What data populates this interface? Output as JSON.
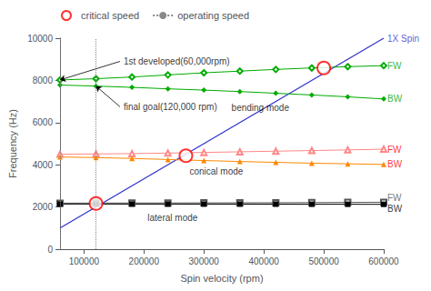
{
  "chart_data": {
    "type": "line",
    "xlabel": "Spin velocity (rpm)",
    "ylabel": "Frequency (Hz)",
    "xlim": [
      60000,
      600000
    ],
    "ylim": [
      0,
      10000
    ],
    "xticks": [
      100000,
      200000,
      300000,
      400000,
      500000,
      600000
    ],
    "yticks": [
      0,
      2000,
      4000,
      6000,
      8000,
      10000
    ],
    "grid": false,
    "legend": "upper left",
    "series": [
      {
        "type": "line",
        "color": "#3333cc",
        "x": [
          60000,
          600000
        ],
        "values": [
          1000,
          10000
        ]
      },
      {
        "type": "line",
        "color": "#00aa00",
        "marker": "emptyDiamond",
        "x": [
          60000,
          120000,
          180000,
          240000,
          300000,
          360000,
          420000,
          480000,
          540000,
          600000
        ],
        "values": [
          8020,
          8080,
          8160,
          8260,
          8360,
          8440,
          8520,
          8590,
          8650,
          8700
        ]
      },
      {
        "type": "line",
        "color": "#00aa00",
        "marker": "diamond",
        "x": [
          60000,
          120000,
          180000,
          240000,
          300000,
          360000,
          420000,
          480000,
          540000,
          600000
        ],
        "values": [
          7780,
          7730,
          7670,
          7600,
          7540,
          7470,
          7390,
          7310,
          7220,
          7120
        ]
      },
      {
        "type": "line",
        "color": "#ff8888",
        "marker": "emptyTriangle",
        "x": [
          60000,
          120000,
          180000,
          240000,
          300000,
          360000,
          420000,
          480000,
          540000,
          600000
        ],
        "values": [
          4500,
          4515,
          4530,
          4555,
          4585,
          4615,
          4645,
          4675,
          4705,
          4740
        ]
      },
      {
        "type": "line",
        "color": "#ff8800",
        "marker": "triangle",
        "x": [
          60000,
          120000,
          180000,
          240000,
          300000,
          360000,
          420000,
          480000,
          540000,
          600000
        ],
        "values": [
          4370,
          4340,
          4300,
          4250,
          4200,
          4155,
          4115,
          4075,
          4045,
          4015
        ]
      },
      {
        "type": "line",
        "color": "#555555",
        "marker": "emptyRect",
        "x": [
          60000,
          120000,
          180000,
          240000,
          300000,
          360000,
          420000,
          480000,
          540000,
          600000
        ],
        "values": [
          2180,
          2185,
          2188,
          2190,
          2193,
          2197,
          2202,
          2208,
          2215,
          2225
        ]
      },
      {
        "type": "line",
        "color": "#000000",
        "marker": "rect",
        "x": [
          60000,
          120000,
          180000,
          240000,
          300000,
          360000,
          420000,
          480000,
          540000,
          600000
        ],
        "values": [
          2140,
          2140,
          2138,
          2137,
          2136,
          2135,
          2133,
          2130,
          2128,
          2125
        ]
      },
      {
        "name": "critical speed",
        "type": "scatter",
        "color": "#ff0000",
        "marker": "emptyCircle",
        "x": [
          120000,
          270000,
          500000
        ],
        "values": [
          2165,
          4430,
          8590
        ]
      },
      {
        "name": "operating speed",
        "type": "vline",
        "color": "#888888",
        "line_style": "dotted",
        "x": [
          60000,
          120000
        ]
      }
    ],
    "annotations": [
      {
        "text": "bending mode",
        "x": 340000,
        "y": 6700,
        "color": "#000000"
      },
      {
        "text": "conical mode",
        "x": 270000,
        "y": 3680,
        "color": "#000000"
      },
      {
        "text": "lateral mode",
        "x": 200000,
        "y": 1480,
        "color": "#000000"
      },
      {
        "text": "1st developed(60,000rpm)",
        "x": 160000,
        "y": 8900,
        "arrow_to": [
          60000,
          8020
        ],
        "color": "#000000"
      },
      {
        "text": "final goal(120,000 rpm)",
        "x": 160000,
        "y": 6750,
        "arrow_to": [
          120000,
          7730
        ],
        "color": "#000000"
      },
      {
        "text": "FW",
        "x": 600000,
        "y": 8700,
        "color": "#00aa00"
      },
      {
        "text": "BW",
        "x": 600000,
        "y": 7120,
        "color": "#00aa00"
      },
      {
        "text": "FW",
        "x": 600000,
        "y": 4740,
        "color": "#ff0000"
      },
      {
        "text": "BW",
        "x": 600000,
        "y": 4015,
        "color": "#ff0000"
      },
      {
        "text": "FW",
        "x": 600000,
        "y": 2225,
        "color": "#555555"
      },
      {
        "text": "BW",
        "x": 600000,
        "y": 2125,
        "color": "#000000"
      },
      {
        "text": "1X Spin",
        "x": 600000,
        "y": 10000,
        "color": "#3333cc"
      }
    ]
  }
}
